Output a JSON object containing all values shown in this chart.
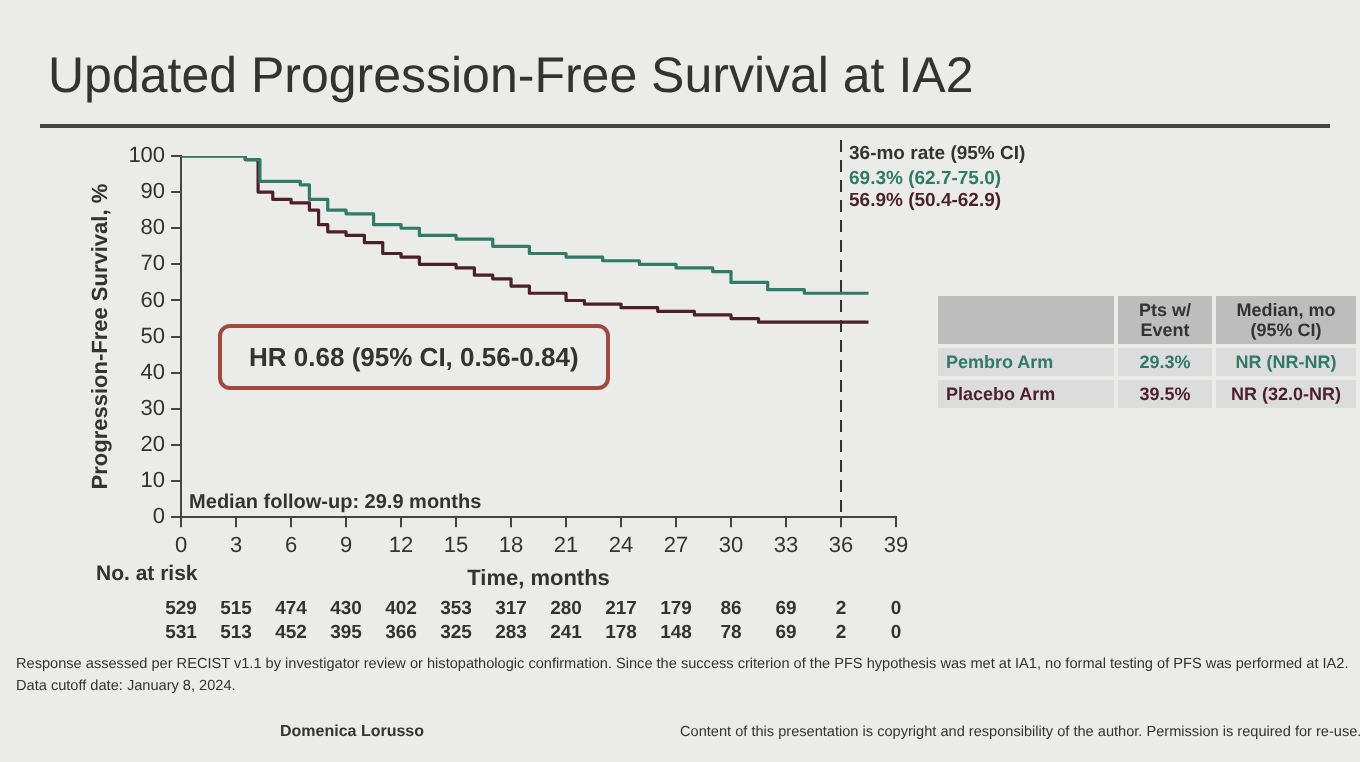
{
  "chart_data": [
    {
      "type": "step",
      "title": "Updated Progression-Free Survival at IA2",
      "xlabel": "Time, months",
      "ylabel": "Progression-Free Survival, %",
      "xlim": [
        0,
        39
      ],
      "xticks": [
        0,
        3,
        6,
        9,
        12,
        15,
        18,
        21,
        24,
        27,
        30,
        33,
        36,
        39
      ],
      "ylim": [
        0,
        100
      ],
      "yticks": [
        0,
        10,
        20,
        30,
        40,
        50,
        60,
        70,
        80,
        90,
        100
      ],
      "grid": false,
      "legend": false,
      "marker": "none",
      "line_style": "solid",
      "series": [
        {
          "color": "#2f7a68",
          "x": [
            0,
            3.5,
            4.3,
            6.5,
            7,
            8,
            9,
            10.5,
            12,
            13,
            15,
            17,
            19,
            21,
            23,
            25,
            27,
            29,
            30,
            32,
            34,
            37.5
          ],
          "values": [
            100,
            99,
            93,
            92,
            88,
            85,
            84,
            81,
            80,
            78,
            77,
            75,
            73,
            72,
            71,
            70,
            69,
            68,
            65,
            63,
            62,
            62
          ]
        },
        {
          "color": "#4b1f2e",
          "x": [
            0,
            3.5,
            4.2,
            5,
            6,
            7,
            7.5,
            8,
            9,
            10,
            11,
            12,
            13,
            15,
            16,
            17,
            18,
            19,
            21,
            22,
            24,
            26,
            28,
            30,
            31.5,
            37.5
          ],
          "values": [
            100,
            99,
            90,
            88,
            87,
            85,
            81,
            79,
            78,
            76,
            73,
            72,
            70,
            69,
            67,
            66,
            64,
            62,
            60,
            59,
            58,
            57,
            56,
            55,
            54,
            54
          ]
        }
      ],
      "ref_lines": [
        {
          "axis": "x",
          "value": 36,
          "label": "36-mo rate (95% CI)",
          "line_style": "dashed"
        }
      ],
      "annotations": [
        "69.3% (62.7-75.0)",
        "56.9% (50.4-62.9)",
        "HR 0.68 (95% CI, 0.56-0.84)",
        "Median follow-up: 29.9 months",
        "No. at risk",
        "529 515 474 430 402 353 317 280 217 179 86 69 2 0",
        "531 513 452 395 366 325 283 241 178 148 78 69 2 0",
        "Response assessed per RECIST v1.1 by investigator review or histopathologic confirmation. Since the success criterion of the PFS hypothesis was met at IA1, no formal testing of PFS was performed at IA2.",
        "Data cutoff date: January 8, 2024.",
        "Domenica Lorusso",
        "Content of this presentation is copyright and responsibility of the author. Permission is required for re-use."
      ]
    },
    {
      "type": "other",
      "annotations": [
        "Pts w/ Event",
        "Median, mo (95% CI)",
        "Pembro Arm",
        "29.3%",
        "NR (NR-NR)",
        "Placebo Arm",
        "39.5%",
        "NR (32.0-NR)"
      ]
    }
  ]
}
